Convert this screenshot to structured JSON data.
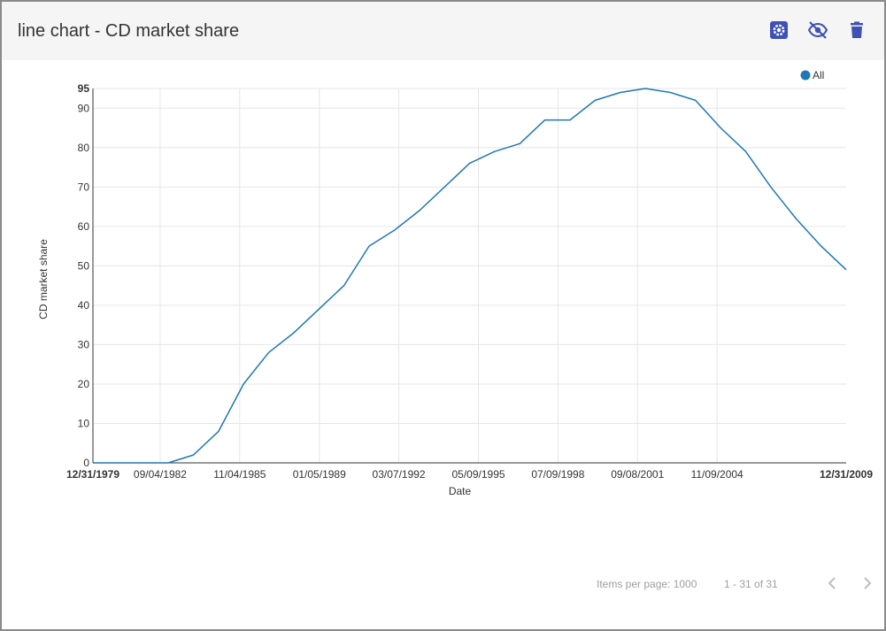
{
  "header": {
    "title": "line chart - CD market share",
    "icons": [
      "gear-icon",
      "eye-off-icon",
      "trash-icon"
    ],
    "accent_color": "#3f51b5"
  },
  "footer": {
    "items_per_page_label": "Items per page: 1000",
    "range_label": "1 - 31 of 31"
  },
  "chart_data": {
    "type": "line",
    "xlabel": "Date",
    "ylabel": "CD market share",
    "ylim": [
      0,
      95
    ],
    "xlim": [
      "12/31/1979",
      "12/31/2009"
    ],
    "x_ticks": [
      "12/31/1979",
      "09/04/1982",
      "11/04/1985",
      "01/05/1989",
      "03/07/1992",
      "05/09/1995",
      "07/09/1998",
      "09/08/2001",
      "11/09/2004",
      "12/31/2009"
    ],
    "y_ticks": [
      0,
      10,
      20,
      30,
      40,
      50,
      60,
      70,
      80,
      90,
      95
    ],
    "grid": true,
    "legend_position": "top-right",
    "series": [
      {
        "name": "All",
        "color": "#1f77b4",
        "x": [
          "12/31/1979",
          "12/31/1980",
          "12/31/1981",
          "12/31/1982",
          "12/31/1983",
          "12/31/1984",
          "12/31/1985",
          "12/31/1986",
          "12/31/1987",
          "12/31/1988",
          "12/31/1989",
          "12/31/1990",
          "12/31/1991",
          "12/31/1992",
          "12/31/1993",
          "12/31/1994",
          "12/31/1995",
          "12/31/1996",
          "12/31/1997",
          "12/31/1998",
          "12/31/1999",
          "12/31/2000",
          "12/31/2001",
          "12/31/2002",
          "12/31/2003",
          "12/31/2004",
          "12/31/2005",
          "12/31/2006",
          "12/31/2007",
          "12/31/2008",
          "12/31/2009"
        ],
        "values": [
          0,
          0,
          0,
          0,
          2,
          8,
          20,
          28,
          33,
          39,
          45,
          55,
          59,
          64,
          70,
          76,
          79,
          81,
          87,
          87,
          92,
          94,
          95,
          94,
          92,
          85,
          79,
          70,
          62,
          55,
          49
        ]
      }
    ]
  }
}
